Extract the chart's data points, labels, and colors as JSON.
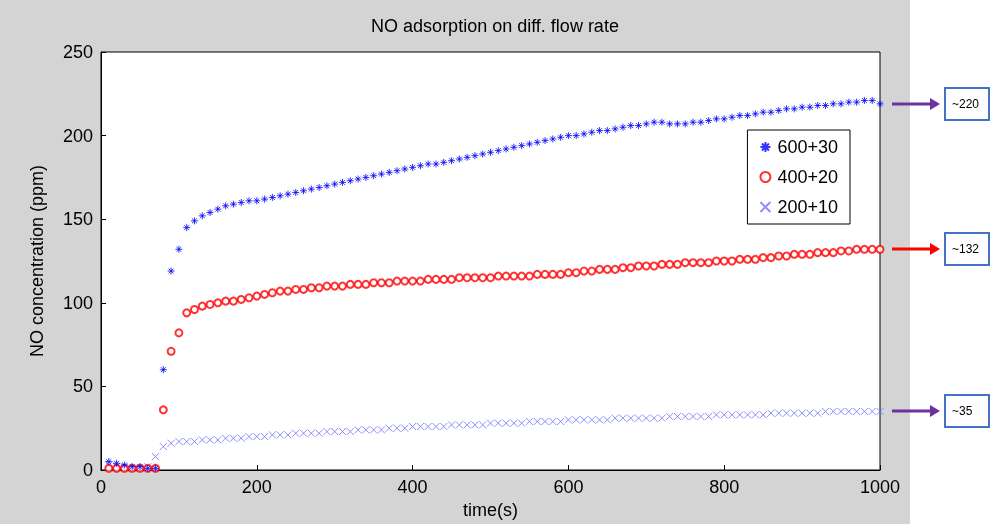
{
  "chart_data": {
    "type": "scatter",
    "title": "NO adsorption on diff. flow rate",
    "xlabel": "time(s)",
    "ylabel": "NO concentration (ppm)",
    "x": [
      10,
      20,
      30,
      40,
      50,
      60,
      70,
      80,
      90,
      100,
      110,
      120,
      130,
      140,
      150,
      160,
      170,
      180,
      190,
      200,
      210,
      220,
      230,
      240,
      250,
      260,
      270,
      280,
      290,
      300,
      310,
      320,
      330,
      340,
      350,
      360,
      370,
      380,
      390,
      400,
      410,
      420,
      430,
      440,
      450,
      460,
      470,
      480,
      490,
      500,
      510,
      520,
      530,
      540,
      550,
      560,
      570,
      580,
      590,
      600,
      610,
      620,
      630,
      640,
      650,
      660,
      670,
      680,
      690,
      700,
      710,
      720,
      730,
      740,
      750,
      760,
      770,
      780,
      790,
      800,
      810,
      820,
      830,
      840,
      850,
      860,
      870,
      880,
      890,
      900,
      910,
      920,
      930,
      940,
      950,
      960,
      970,
      980,
      990,
      1000
    ],
    "series": [
      {
        "name": "600+30",
        "color": "#0000ff",
        "values": [
          5,
          4,
          3,
          2,
          2,
          1,
          1,
          60,
          119,
          132,
          145,
          149,
          152,
          154,
          156,
          158,
          159,
          160,
          161,
          161,
          162,
          163,
          164,
          165,
          166,
          167,
          168,
          169,
          170,
          171,
          172,
          173,
          174,
          175,
          176,
          177,
          178,
          179,
          180,
          181,
          182,
          183,
          183,
          184,
          185,
          186,
          187,
          188,
          189,
          190,
          191,
          192,
          193,
          194,
          195,
          196,
          197,
          198,
          199,
          200,
          200,
          201,
          202,
          203,
          203,
          204,
          205,
          206,
          206,
          207,
          208,
          208,
          207,
          207,
          207,
          208,
          208,
          209,
          210,
          210,
          211,
          212,
          212,
          213,
          214,
          214,
          215,
          216,
          216,
          217,
          217,
          218,
          218,
          219,
          219,
          220,
          220,
          221,
          221,
          219
        ]
      },
      {
        "name": "400+20",
        "color": "#ff0000",
        "marker": "circle",
        "values": [
          1,
          1,
          1,
          1,
          1,
          1,
          1,
          36,
          71,
          82,
          94,
          96,
          98,
          99,
          100,
          101,
          101,
          102,
          103,
          104,
          105,
          106,
          107,
          107,
          108,
          108,
          109,
          109,
          110,
          110,
          110,
          111,
          111,
          111,
          112,
          112,
          112,
          113,
          113,
          113,
          113,
          114,
          114,
          114,
          114,
          115,
          115,
          115,
          115,
          115,
          116,
          116,
          116,
          116,
          116,
          117,
          117,
          117,
          117,
          118,
          118,
          119,
          119,
          120,
          120,
          120,
          121,
          121,
          122,
          122,
          122,
          123,
          123,
          123,
          124,
          124,
          124,
          124,
          125,
          125,
          125,
          126,
          126,
          126,
          127,
          127,
          128,
          128,
          129,
          129,
          129,
          130,
          130,
          130,
          131,
          131,
          132,
          132,
          132,
          132
        ]
      },
      {
        "name": "200+10",
        "color": "#7070ff",
        "marker": "cross",
        "values": [
          3,
          2,
          2,
          1,
          1,
          2,
          8,
          14,
          16,
          17,
          17,
          17,
          18,
          18,
          18,
          19,
          19,
          19,
          20,
          20,
          20,
          21,
          21,
          21,
          22,
          22,
          22,
          22,
          23,
          23,
          23,
          23,
          24,
          24,
          24,
          24,
          25,
          25,
          25,
          26,
          26,
          26,
          26,
          26,
          27,
          27,
          27,
          27,
          27,
          28,
          28,
          28,
          28,
          28,
          29,
          29,
          29,
          29,
          29,
          30,
          30,
          30,
          30,
          30,
          30,
          31,
          31,
          31,
          31,
          31,
          31,
          31,
          32,
          32,
          32,
          32,
          32,
          32,
          33,
          33,
          33,
          33,
          33,
          33,
          33,
          34,
          34,
          34,
          34,
          34,
          34,
          34,
          35,
          35,
          35,
          35,
          35,
          35,
          35,
          35
        ]
      }
    ],
    "xlim": [
      0,
      1000
    ],
    "xticks": [
      0,
      200,
      400,
      600,
      800,
      1000
    ],
    "ylim": [
      0,
      250
    ],
    "yticks": [
      0,
      50,
      100,
      150,
      200,
      250
    ],
    "grid": false,
    "legend": "top right",
    "annotations": [
      "~220",
      "~132",
      "~35"
    ]
  }
}
